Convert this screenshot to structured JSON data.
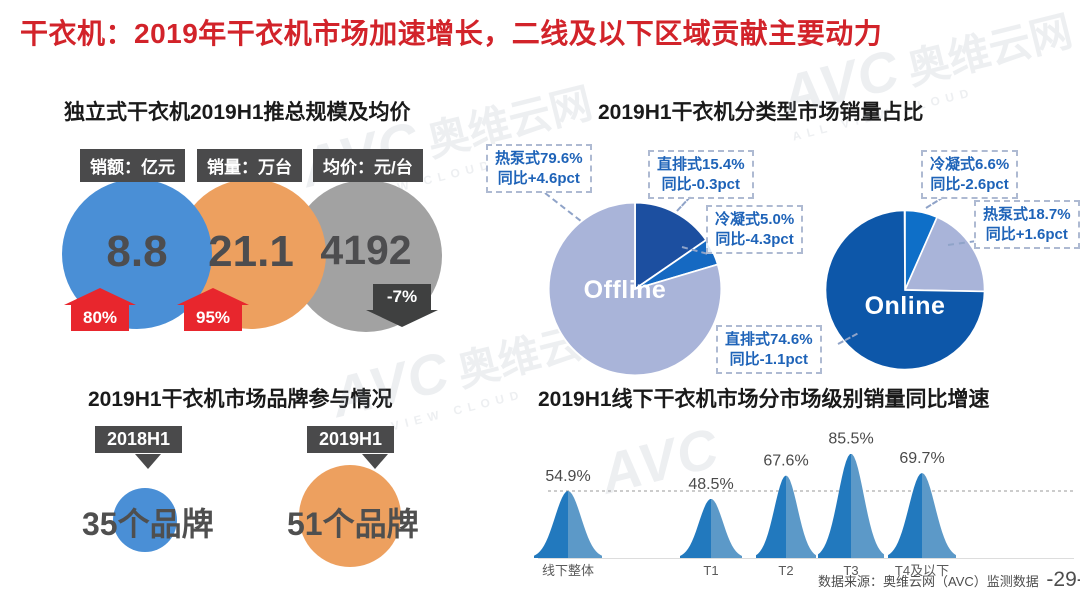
{
  "title": "干衣机：2019年干衣机市场加速增长，二线及以下区域贡献主要动力",
  "watermark": {
    "brand": "AVC",
    "name": "奥维云网",
    "tagline": "ALL VIEW CLOUD"
  },
  "footer": {
    "source": "数据来源：奥维云网（AVC）监测数据",
    "page": "-29-"
  },
  "scale_section": {
    "title": "独立式干衣机2019H1推总规模及均价",
    "metrics": [
      {
        "label": "销额：亿元",
        "value": "8.8",
        "change": "80%",
        "direction": "up",
        "circle_color": "#4a8fd6"
      },
      {
        "label": "销量：万台",
        "value": "21.1",
        "change": "95%",
        "direction": "up",
        "circle_color": "#eda05f"
      },
      {
        "label": "均价：元/台",
        "value": "4192",
        "change": "-7%",
        "direction": "down",
        "circle_color": "#a2a2a2"
      }
    ]
  },
  "type_share_section": {
    "title": "2019H1干衣机分类型市场销量占比",
    "callouts": [
      {
        "line1": "热泵式79.6%",
        "line2": "同比+4.6pct"
      },
      {
        "line1": "直排式15.4%",
        "line2": "同比-0.3pct"
      },
      {
        "line1": "冷凝式5.0%",
        "line2": "同比-4.3pct"
      },
      {
        "line1": "冷凝式6.6%",
        "line2": "同比-2.6pct"
      },
      {
        "line1": "热泵式18.7%",
        "line2": "同比+1.6pct"
      },
      {
        "line1": "直排式74.6%",
        "line2": "同比-1.1pct"
      }
    ]
  },
  "brand_section": {
    "title": "2019H1干衣机市场品牌参与情况",
    "periods": [
      {
        "tag": "2018H1",
        "count": "35个品牌",
        "circle_color": "#4a8fd6"
      },
      {
        "tag": "2019H1",
        "count": "51个品牌",
        "circle_color": "#eda05f"
      }
    ]
  },
  "tier_section": {
    "title": "2019H1线下干衣机市场分市场级别销量同比增速"
  },
  "chart_data": [
    {
      "type": "kpi",
      "title": "独立式干衣机2019H1推总规模及均价",
      "items": [
        {
          "label": "销额：亿元",
          "value": 8.8,
          "yoy": "+80%"
        },
        {
          "label": "销量：万台",
          "value": 21.1,
          "yoy": "+95%"
        },
        {
          "label": "均价：元/台",
          "value": 4192,
          "yoy": "-7%"
        }
      ]
    },
    {
      "type": "pie",
      "title": "Offline",
      "labels": [
        "直排式",
        "冷凝式",
        "热泵式"
      ],
      "values": [
        15.4,
        5.0,
        79.6
      ],
      "yoy_pct": [
        "-0.3pct",
        "-4.3pct",
        "+4.6pct"
      ],
      "colors": [
        "#1c4fa0",
        "#1569c2",
        "#a9b4d9"
      ],
      "start_angle_deg": 0
    },
    {
      "type": "pie",
      "title": "Online",
      "labels": [
        "冷凝式",
        "热泵式",
        "直排式"
      ],
      "values": [
        6.6,
        18.7,
        74.6
      ],
      "yoy_pct": [
        "-2.6pct",
        "+1.6pct",
        "-1.1pct"
      ],
      "colors": [
        "#0e6fc8",
        "#a9b4d9",
        "#0d57a9"
      ],
      "start_angle_deg": 0
    },
    {
      "type": "area",
      "title": "2019H1线下干衣机市场分市场级别销量同比增速",
      "categories": [
        "线下整体",
        "T1",
        "T2",
        "T3",
        "T4及以下"
      ],
      "values": [
        54.9,
        48.5,
        67.6,
        85.5,
        69.7
      ],
      "unit": "%",
      "ylim": [
        0,
        100
      ],
      "reference_value": 54.9,
      "colors": [
        "#2279be",
        "#5c99c8"
      ]
    },
    {
      "type": "bubble",
      "title": "2019H1干衣机市场品牌参与情况",
      "categories": [
        "2018H1",
        "2019H1"
      ],
      "values": [
        35,
        51
      ],
      "unit": "个品牌"
    }
  ]
}
